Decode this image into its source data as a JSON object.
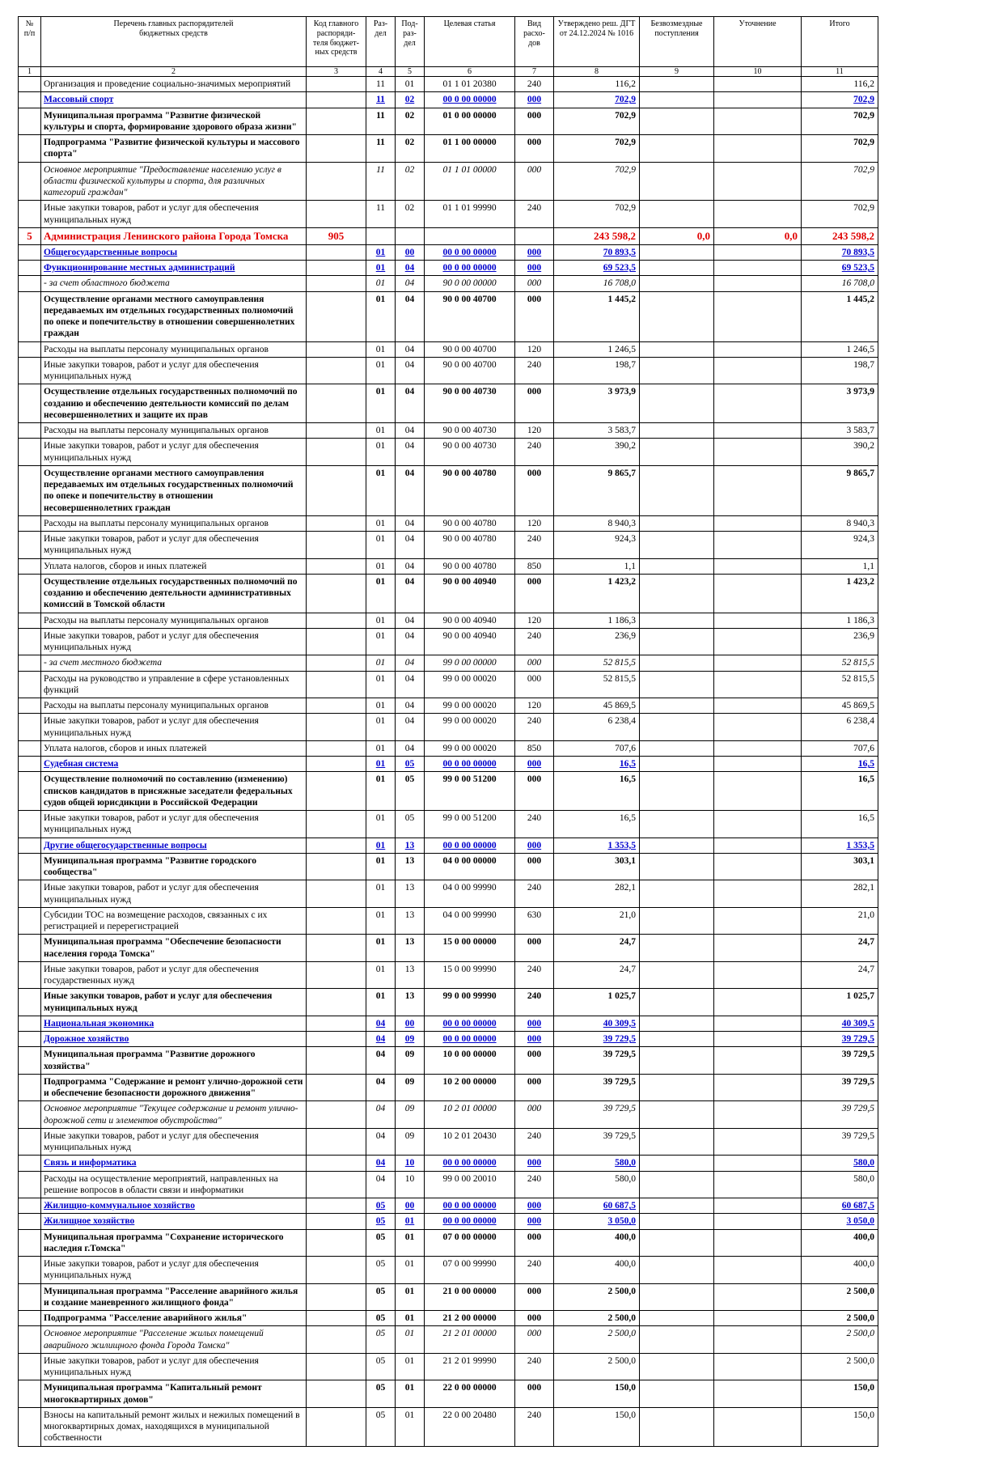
{
  "table": {
    "headers": [
      "№\nп/п",
      "Перечень главных распорядителей\nбюджетных средств",
      "Код главного\nраспоряди-\nтеля бюджет-\nных средств",
      "Раз-\nдел",
      "Под-\nраз-\nдел",
      "Целевая статья",
      "Вид расхо-\nдов",
      "Утверждено реш. ДГТ\nот 24.12.2024 № 1016",
      "Безвозмездные\nпоступления",
      "Уточнение",
      "Итого"
    ],
    "col_numbers": [
      "1",
      "2",
      "3",
      "4",
      "5",
      "6",
      "7",
      "8",
      "9",
      "10",
      "11"
    ],
    "rows": [
      {
        "s": "n",
        "c": [
          "",
          "Организация и проведение социально-значимых мероприятий",
          "",
          "11",
          "01",
          "01 1 01 20380",
          "240",
          "116,2",
          "",
          "",
          "116,2"
        ]
      },
      {
        "s": "blue",
        "c": [
          "",
          "Массовый спорт",
          "",
          "11",
          "02",
          "00 0 00 00000",
          "000",
          "702,9",
          "",
          "",
          "702,9"
        ]
      },
      {
        "s": "b",
        "c": [
          "",
          "Муниципальная программа \"Развитие физической культуры и спорта, формирование здорового образа жизни\"",
          "",
          "11",
          "02",
          "01 0 00 00000",
          "000",
          "702,9",
          "",
          "",
          "702,9"
        ]
      },
      {
        "s": "b",
        "c": [
          "",
          "Подпрограмма \"Развитие физической культуры и массового спорта\"",
          "",
          "11",
          "02",
          "01 1 00 00000",
          "000",
          "702,9",
          "",
          "",
          "702,9"
        ]
      },
      {
        "s": "i",
        "c": [
          "",
          "Основное мероприятие \"Предоставление населению услуг в области физической культуры и спорта, для различных категорий граждан\"",
          "",
          "11",
          "02",
          "01 1 01 00000",
          "000",
          "702,9",
          "",
          "",
          "702,9"
        ]
      },
      {
        "s": "n",
        "c": [
          "",
          "Иные закупки товаров, работ и услуг для обеспечения муниципальных нужд",
          "",
          "11",
          "02",
          "01 1 01 99990",
          "240",
          "702,9",
          "",
          "",
          "702,9"
        ]
      },
      {
        "s": "red",
        "c": [
          "5",
          "Администрация Ленинского района Города Томска",
          "905",
          "",
          "",
          "",
          "",
          "243 598,2",
          "0,0",
          "0,0",
          "243 598,2"
        ]
      },
      {
        "s": "blue",
        "c": [
          "",
          "Общегосударственные вопросы",
          "",
          "01",
          "00",
          "00 0 00 00000",
          "000",
          "70 893,5",
          "",
          "",
          "70 893,5"
        ]
      },
      {
        "s": "blue",
        "c": [
          "",
          "Функционирование местных администраций",
          "",
          "01",
          "04",
          "00 0 00 00000",
          "000",
          "69 523,5",
          "",
          "",
          "69 523,5"
        ]
      },
      {
        "s": "i",
        "c": [
          "",
          "- за счет областного бюджета",
          "",
          "01",
          "04",
          "90 0 00 00000",
          "000",
          "16 708,0",
          "",
          "",
          "16 708,0"
        ]
      },
      {
        "s": "b",
        "c": [
          "",
          "Осуществление органами местного самоуправления передаваемых им отдельных государственных полномочий по опеке и попечительству в отношении совершеннолетних граждан",
          "",
          "01",
          "04",
          "90 0 00 40700",
          "000",
          "1 445,2",
          "",
          "",
          "1 445,2"
        ]
      },
      {
        "s": "n",
        "c": [
          "",
          "Расходы на выплаты персоналу муниципальных органов",
          "",
          "01",
          "04",
          "90 0 00 40700",
          "120",
          "1 246,5",
          "",
          "",
          "1 246,5"
        ]
      },
      {
        "s": "n",
        "c": [
          "",
          "Иные закупки товаров, работ и услуг для обеспечения муниципальных нужд",
          "",
          "01",
          "04",
          "90 0 00 40700",
          "240",
          "198,7",
          "",
          "",
          "198,7"
        ]
      },
      {
        "s": "b",
        "c": [
          "",
          "Осуществление отдельных государственных полномочий по созданию и обеспечению деятельности комиссий по делам несовершеннолетних и защите их прав",
          "",
          "01",
          "04",
          "90 0 00 40730",
          "000",
          "3 973,9",
          "",
          "",
          "3 973,9"
        ]
      },
      {
        "s": "n",
        "c": [
          "",
          "Расходы на выплаты персоналу муниципальных органов",
          "",
          "01",
          "04",
          "90 0 00 40730",
          "120",
          "3 583,7",
          "",
          "",
          "3 583,7"
        ]
      },
      {
        "s": "n",
        "c": [
          "",
          "Иные закупки товаров, работ и услуг для обеспечения муниципальных нужд",
          "",
          "01",
          "04",
          "90 0 00 40730",
          "240",
          "390,2",
          "",
          "",
          "390,2"
        ]
      },
      {
        "s": "b",
        "c": [
          "",
          "Осуществление органами местного самоуправления передаваемых им отдельных государственных полномочий по опеке и попечительству в отношении несовершеннолетних граждан",
          "",
          "01",
          "04",
          "90 0 00 40780",
          "000",
          "9 865,7",
          "",
          "",
          "9 865,7"
        ]
      },
      {
        "s": "n",
        "c": [
          "",
          "Расходы на выплаты персоналу муниципальных органов",
          "",
          "01",
          "04",
          "90 0 00 40780",
          "120",
          "8 940,3",
          "",
          "",
          "8 940,3"
        ]
      },
      {
        "s": "n",
        "c": [
          "",
          "Иные закупки товаров, работ и услуг для обеспечения муниципальных нужд",
          "",
          "01",
          "04",
          "90 0 00 40780",
          "240",
          "924,3",
          "",
          "",
          "924,3"
        ]
      },
      {
        "s": "n",
        "c": [
          "",
          "Уплата налогов, сборов и иных платежей",
          "",
          "01",
          "04",
          "90 0 00 40780",
          "850",
          "1,1",
          "",
          "",
          "1,1"
        ]
      },
      {
        "s": "b",
        "c": [
          "",
          "Осуществление отдельных государственных полномочий по созданию и обеспечению деятельности административных комиссий в Томской области",
          "",
          "01",
          "04",
          "90 0 00 40940",
          "000",
          "1 423,2",
          "",
          "",
          "1 423,2"
        ]
      },
      {
        "s": "n",
        "c": [
          "",
          "Расходы на выплаты персоналу муниципальных органов",
          "",
          "01",
          "04",
          "90 0 00 40940",
          "120",
          "1 186,3",
          "",
          "",
          "1 186,3"
        ]
      },
      {
        "s": "n",
        "c": [
          "",
          "Иные закупки товаров, работ и услуг для обеспечения муниципальных нужд",
          "",
          "01",
          "04",
          "90 0 00 40940",
          "240",
          "236,9",
          "",
          "",
          "236,9"
        ]
      },
      {
        "s": "i",
        "c": [
          "",
          "- за счет местного бюджета",
          "",
          "01",
          "04",
          "99 0 00 00000",
          "000",
          "52 815,5",
          "",
          "",
          "52 815,5"
        ]
      },
      {
        "s": "n",
        "c": [
          "",
          "Расходы на руководство и управление в сфере установленных функций",
          "",
          "01",
          "04",
          "99 0 00 00020",
          "000",
          "52 815,5",
          "",
          "",
          "52 815,5"
        ]
      },
      {
        "s": "n",
        "c": [
          "",
          "Расходы на выплаты персоналу муниципальных органов",
          "",
          "01",
          "04",
          "99 0 00 00020",
          "120",
          "45 869,5",
          "",
          "",
          "45 869,5"
        ]
      },
      {
        "s": "n",
        "c": [
          "",
          "Иные закупки товаров, работ и услуг для обеспечения муниципальных нужд",
          "",
          "01",
          "04",
          "99 0 00 00020",
          "240",
          "6 238,4",
          "",
          "",
          "6 238,4"
        ]
      },
      {
        "s": "n",
        "c": [
          "",
          "Уплата налогов, сборов и иных платежей",
          "",
          "01",
          "04",
          "99 0 00 00020",
          "850",
          "707,6",
          "",
          "",
          "707,6"
        ]
      },
      {
        "s": "blue",
        "c": [
          "",
          "Судебная система",
          "",
          "01",
          "05",
          "00 0 00 00000",
          "000",
          "16,5",
          "",
          "",
          "16,5"
        ]
      },
      {
        "s": "b",
        "c": [
          "",
          "Осуществление полномочий по составлению (изменению) списков кандидатов в присяжные заседатели федеральных судов общей юрисдикции в Российской Федерации",
          "",
          "01",
          "05",
          "99 0 00 51200",
          "000",
          "16,5",
          "",
          "",
          "16,5"
        ]
      },
      {
        "s": "n",
        "c": [
          "",
          "Иные закупки товаров, работ и услуг для обеспечения муниципальных нужд",
          "",
          "01",
          "05",
          "99 0 00 51200",
          "240",
          "16,5",
          "",
          "",
          "16,5"
        ]
      },
      {
        "s": "blue",
        "c": [
          "",
          "Другие общегосударственные вопросы",
          "",
          "01",
          "13",
          "00 0 00 00000",
          "000",
          "1 353,5",
          "",
          "",
          "1 353,5"
        ]
      },
      {
        "s": "b",
        "c": [
          "",
          "Муниципальная программа \"Развитие городского сообщества\"",
          "",
          "01",
          "13",
          "04 0 00 00000",
          "000",
          "303,1",
          "",
          "",
          "303,1"
        ]
      },
      {
        "s": "n",
        "c": [
          "",
          "Иные закупки товаров, работ и услуг для обеспечения муниципальных нужд",
          "",
          "01",
          "13",
          "04 0 00 99990",
          "240",
          "282,1",
          "",
          "",
          "282,1"
        ]
      },
      {
        "s": "n",
        "c": [
          "",
          "Субсидии ТОС на возмещение расходов, связанных с их регистрацией и перерегистрацией",
          "",
          "01",
          "13",
          "04 0 00 99990",
          "630",
          "21,0",
          "",
          "",
          "21,0"
        ]
      },
      {
        "s": "b",
        "c": [
          "",
          "Муниципальная программа \"Обеспечение безопасности населения города Томска\"",
          "",
          "01",
          "13",
          "15 0 00 00000",
          "000",
          "24,7",
          "",
          "",
          "24,7"
        ]
      },
      {
        "s": "n",
        "c": [
          "",
          "Иные закупки товаров, работ и услуг для обеспечения государственных нужд",
          "",
          "01",
          "13",
          "15 0 00 99990",
          "240",
          "24,7",
          "",
          "",
          "24,7"
        ]
      },
      {
        "s": "b",
        "c": [
          "",
          "Иные закупки товаров, работ и услуг для обеспечения муниципальных нужд",
          "",
          "01",
          "13",
          "99 0 00 99990",
          "240",
          "1 025,7",
          "",
          "",
          "1 025,7"
        ]
      },
      {
        "s": "blue",
        "c": [
          "",
          "Национальная экономика",
          "",
          "04",
          "00",
          "00 0 00 00000",
          "000",
          "40 309,5",
          "",
          "",
          "40 309,5"
        ]
      },
      {
        "s": "blue",
        "c": [
          "",
          "Дорожное хозяйство",
          "",
          "04",
          "09",
          "00 0 00 00000",
          "000",
          "39 729,5",
          "",
          "",
          "39 729,5"
        ]
      },
      {
        "s": "b",
        "c": [
          "",
          "Муниципальная программа \"Развитие дорожного хозяйства\"",
          "",
          "04",
          "09",
          "10 0 00 00000",
          "000",
          "39 729,5",
          "",
          "",
          "39 729,5"
        ]
      },
      {
        "s": "b",
        "c": [
          "",
          "Подпрограмма \"Содержание и ремонт улично-дорожной сети и обеспечение безопасности дорожного движения\"",
          "",
          "04",
          "09",
          "10 2 00 00000",
          "000",
          "39 729,5",
          "",
          "",
          "39 729,5"
        ]
      },
      {
        "s": "i",
        "c": [
          "",
          "Основное мероприятие \"Текущее содержание и ремонт улично-дорожной сети и элементов обустройства\"",
          "",
          "04",
          "09",
          "10 2 01 00000",
          "000",
          "39 729,5",
          "",
          "",
          "39 729,5"
        ]
      },
      {
        "s": "n",
        "c": [
          "",
          "Иные закупки товаров, работ и услуг для обеспечения муниципальных нужд",
          "",
          "04",
          "09",
          "10 2 01 20430",
          "240",
          "39 729,5",
          "",
          "",
          "39 729,5"
        ]
      },
      {
        "s": "blue",
        "c": [
          "",
          "Связь и информатика",
          "",
          "04",
          "10",
          "00 0 00 00000",
          "000",
          "580,0",
          "",
          "",
          "580,0"
        ]
      },
      {
        "s": "n",
        "c": [
          "",
          "Расходы на осуществление мероприятий, направленных на решение вопросов в области связи и информатики",
          "",
          "04",
          "10",
          "99 0 00 20010",
          "240",
          "580,0",
          "",
          "",
          "580,0"
        ]
      },
      {
        "s": "blue",
        "c": [
          "",
          "Жилищно-коммунальное хозяйство",
          "",
          "05",
          "00",
          "00 0 00 00000",
          "000",
          "60 687,5",
          "",
          "",
          "60 687,5"
        ]
      },
      {
        "s": "blue",
        "c": [
          "",
          "Жилищное хозяйство",
          "",
          "05",
          "01",
          "00 0 00 00000",
          "000",
          "3 050,0",
          "",
          "",
          "3 050,0"
        ]
      },
      {
        "s": "b",
        "c": [
          "",
          "Муниципальная программа \"Сохранение исторического наследия г.Томска\"",
          "",
          "05",
          "01",
          "07 0 00 00000",
          "000",
          "400,0",
          "",
          "",
          "400,0"
        ]
      },
      {
        "s": "n",
        "c": [
          "",
          "Иные закупки товаров, работ и услуг для обеспечения муниципальных нужд",
          "",
          "05",
          "01",
          "07 0 00 99990",
          "240",
          "400,0",
          "",
          "",
          "400,0"
        ]
      },
      {
        "s": "b",
        "c": [
          "",
          "Муниципальная программа \"Расселение аварийного жилья и создание маневренного жилищного фонда\"",
          "",
          "05",
          "01",
          "21 0 00 00000",
          "000",
          "2 500,0",
          "",
          "",
          "2 500,0"
        ]
      },
      {
        "s": "b",
        "c": [
          "",
          "Подпрограмма \"Расселение аварийного жилья\"",
          "",
          "05",
          "01",
          "21 2 00 00000",
          "000",
          "2 500,0",
          "",
          "",
          "2 500,0"
        ]
      },
      {
        "s": "i",
        "c": [
          "",
          "Основное мероприятие \"Расселение жилых помещений аварийного жилищного фонда Города Томска\"",
          "",
          "05",
          "01",
          "21 2 01 00000",
          "000",
          "2 500,0",
          "",
          "",
          "2 500,0"
        ]
      },
      {
        "s": "n",
        "c": [
          "",
          "Иные закупки товаров, работ и услуг для обеспечения муниципальных нужд",
          "",
          "05",
          "01",
          "21 2 01 99990",
          "240",
          "2 500,0",
          "",
          "",
          "2 500,0"
        ]
      },
      {
        "s": "b",
        "c": [
          "",
          "Муниципальная программа \"Капитальный ремонт многоквартирных домов\"",
          "",
          "05",
          "01",
          "22 0 00 00000",
          "000",
          "150,0",
          "",
          "",
          "150,0"
        ]
      },
      {
        "s": "n",
        "c": [
          "",
          "Взносы на капитальный ремонт жилых и нежилых помещений в многоквартирных домах, находящихся в муниципальной собственности",
          "",
          "05",
          "01",
          "22 0 00 20480",
          "240",
          "150,0",
          "",
          "",
          "150,0"
        ]
      }
    ]
  }
}
